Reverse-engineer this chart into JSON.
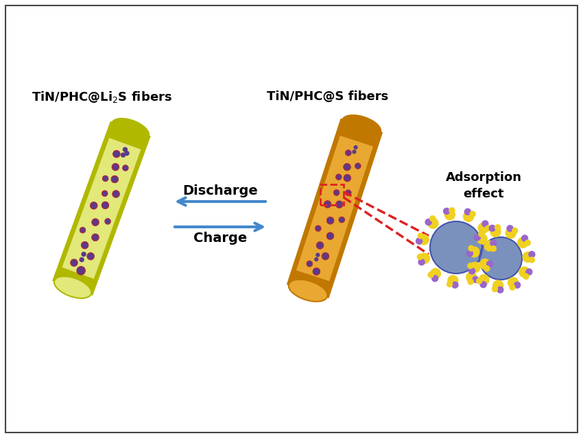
{
  "background_color": "#ffffff",
  "border_color": "#444444",
  "fiber1_label": "TiN/PHC@Li$_2$S fibers",
  "fiber2_label": "TiN/PHC@S fibers",
  "adsorption_label": "Adsorption\neffect",
  "charge_label": "Charge",
  "discharge_label": "Discharge",
  "fiber1_color_outer": "#b0b800",
  "fiber1_color_inner": "#e2e87a",
  "fiber1_dot_color": "#5a3a8a",
  "fiber1_dot_edge": "#cc2222",
  "fiber2_color_outer": "#c07800",
  "fiber2_color_inner": "#e8a832",
  "fiber2_dot_color": "#5a3a8a",
  "fiber2_dot_edge": "#cc2222",
  "arrow_color": "#4488cc",
  "dashed_color": "#dd2222",
  "sphere_color": "#7088b8",
  "sphere_edge_color": "#4455aa",
  "sulfur_color": "#f0d020",
  "sulfur_small_color": "#9966cc",
  "label_fontsize": 13,
  "charge_fontsize": 14
}
